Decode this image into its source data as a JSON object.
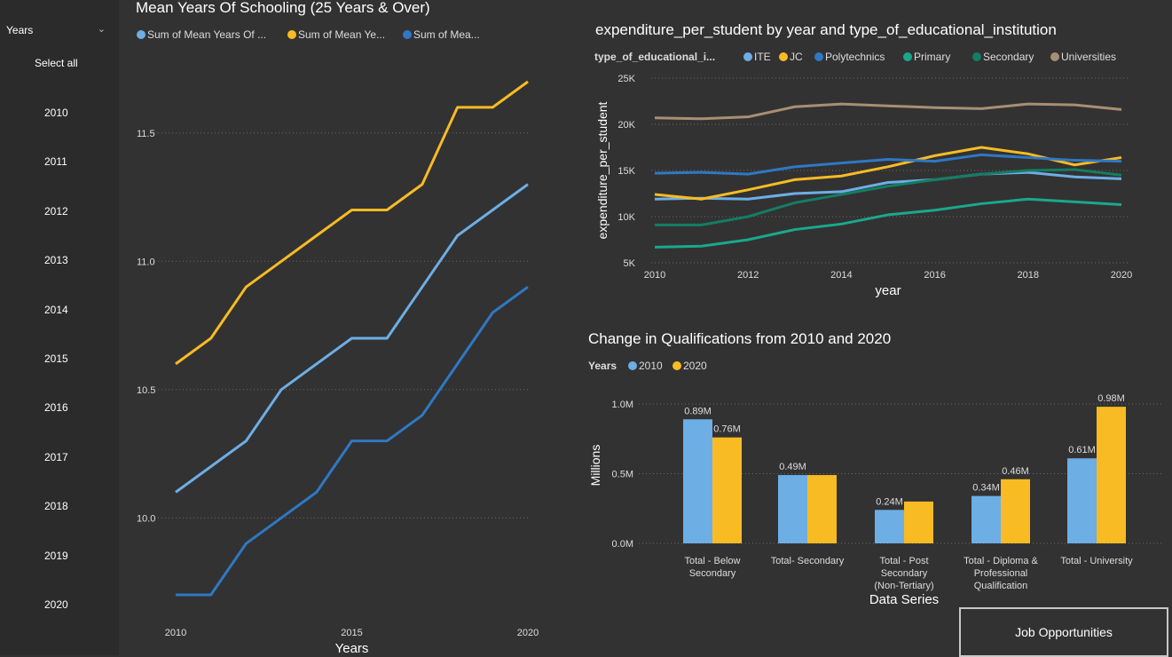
{
  "slicer": {
    "title": "Years",
    "select_all": "Select all",
    "items": [
      "2010",
      "2011",
      "2012",
      "2013",
      "2014",
      "2015",
      "2016",
      "2017",
      "2018",
      "2019",
      "2020"
    ]
  },
  "job_button": {
    "label": "Job Opportunities"
  },
  "chart_data": [
    {
      "type": "line",
      "title": "Mean Years Of Schooling (25 Years & Over)",
      "xlabel": "Years",
      "ylabel": "",
      "xlim": [
        2010,
        2020
      ],
      "ylim": [
        9.7,
        11.7
      ],
      "x_ticks": [
        "2010",
        "2015",
        "2020"
      ],
      "y_ticks": [
        "10.0",
        "10.5",
        "11.0",
        "11.5"
      ],
      "legend": [
        "Sum of Mean Years Of ...",
        "Sum of   Mean Ye...",
        "Sum of   Mea..."
      ],
      "legend_placement": "top",
      "grid": true,
      "x": [
        2010,
        2011,
        2012,
        2013,
        2014,
        2015,
        2016,
        2017,
        2018,
        2019,
        2020
      ],
      "series": [
        {
          "name": "Sum of Mean Years Of ...",
          "color": "#6daee5",
          "values": [
            10.1,
            10.2,
            10.3,
            10.5,
            10.6,
            10.7,
            10.7,
            10.9,
            11.1,
            11.2,
            11.3
          ]
        },
        {
          "name": "Sum of   Mean Ye...",
          "color": "#f8bb24",
          "values": [
            10.6,
            10.7,
            10.9,
            11.0,
            11.1,
            11.2,
            11.2,
            11.3,
            11.6,
            11.6,
            11.7
          ]
        },
        {
          "name": "Sum of   Mea...",
          "color": "#2f78c4",
          "values": [
            9.7,
            9.7,
            9.9,
            10.0,
            10.1,
            10.3,
            10.3,
            10.4,
            10.6,
            10.8,
            10.9
          ]
        }
      ]
    },
    {
      "type": "line",
      "title": "expenditure_per_student by year and type_of_educational_institution",
      "xlabel": "year",
      "ylabel": "expenditure_per_student",
      "legend_title": "type_of_educational_i...",
      "legend_placement": "top",
      "grid": true,
      "xlim": [
        2010,
        2020
      ],
      "ylim": [
        5000,
        25000
      ],
      "x_ticks": [
        "2010",
        "2012",
        "2014",
        "2016",
        "2018",
        "2020"
      ],
      "y_ticks": [
        "5K",
        "10K",
        "15K",
        "20K",
        "25K"
      ],
      "x": [
        2010,
        2011,
        2012,
        2013,
        2014,
        2015,
        2016,
        2017,
        2018,
        2019,
        2020
      ],
      "series": [
        {
          "name": "ITE",
          "color": "#6daee5",
          "values": [
            11900,
            12000,
            11900,
            12500,
            12700,
            13700,
            14000,
            14600,
            14800,
            14300,
            14100
          ]
        },
        {
          "name": "JC",
          "color": "#f8bb24",
          "values": [
            12400,
            11900,
            12900,
            14000,
            14400,
            15400,
            16600,
            17500,
            16800,
            15600,
            16400
          ]
        },
        {
          "name": "Polytechnics",
          "color": "#2f78c4",
          "values": [
            14700,
            14800,
            14600,
            15400,
            15800,
            16200,
            16000,
            16700,
            16400,
            16100,
            16000
          ]
        },
        {
          "name": "Primary",
          "color": "#1aa88c",
          "values": [
            6700,
            6800,
            7500,
            8600,
            9200,
            10200,
            10700,
            11400,
            11900,
            11600,
            11300
          ]
        },
        {
          "name": "Secondary",
          "color": "#147d62",
          "values": [
            9100,
            9100,
            10000,
            11500,
            12400,
            13300,
            14000,
            14600,
            15000,
            15100,
            14500
          ]
        },
        {
          "name": "Universities",
          "color": "#a78f72",
          "values": [
            20700,
            20600,
            20800,
            21900,
            22200,
            22000,
            21800,
            21700,
            22200,
            22100,
            21600
          ]
        }
      ]
    },
    {
      "type": "bar",
      "title": "Change in Qualifications from 2010 and 2020",
      "xlabel": "Data Series",
      "ylabel": "Millions",
      "legend_title": "Years",
      "legend_placement": "top",
      "grid": true,
      "ylim": [
        0,
        1.0
      ],
      "y_ticks": [
        "0.0M",
        "0.5M",
        "1.0M"
      ],
      "categories": [
        [
          "Total - Below",
          "Secondary"
        ],
        [
          "Total- Secondary"
        ],
        [
          "Total - Post",
          "Secondary",
          "(Non-Tertiary)"
        ],
        [
          "Total - Diploma &",
          "Professional",
          "Qualification"
        ],
        [
          "Total - University"
        ]
      ],
      "series": [
        {
          "name": "2010",
          "color": "#6daee5",
          "values": [
            0.89,
            0.49,
            0.24,
            0.34,
            0.61
          ],
          "labels": [
            "0.89M",
            "0.49M",
            "0.24M",
            "0.34M",
            "0.61M"
          ]
        },
        {
          "name": "2020",
          "color": "#f8bb24",
          "values": [
            0.76,
            0.49,
            0.3,
            0.46,
            0.98
          ],
          "labels": [
            "0.76M",
            "",
            "",
            "0.46M",
            "0.98M"
          ]
        }
      ]
    }
  ]
}
